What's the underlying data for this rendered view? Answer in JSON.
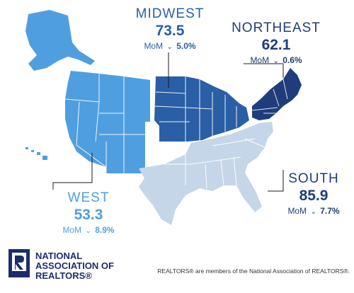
{
  "regions": {
    "midwest": {
      "name": "MIDWEST",
      "value": "73.5",
      "mom_label": "MoM",
      "mom_change": "5.0%",
      "color": "#2a5fa5"
    },
    "northeast": {
      "name": "NORTHEAST",
      "value": "62.1",
      "mom_label": "MoM",
      "mom_change": "0.6%",
      "color": "#1f3d7a"
    },
    "south": {
      "name": "SOUTH",
      "value": "85.9",
      "mom_label": "MoM",
      "mom_change": "7.7%",
      "color": "#c5d6e8"
    },
    "west": {
      "name": "WEST",
      "value": "53.3",
      "mom_label": "MoM",
      "mom_change": "8.9%",
      "color": "#4f9fe0"
    }
  },
  "colors": {
    "west_text": "#4f9fe0",
    "midwest_text": "#2a5fa5",
    "northeast_text": "#1f3d7a",
    "south_text": "#1f3d7a"
  },
  "footer": {
    "org_line1": "NATIONAL",
    "org_line2": "ASSOCIATION OF",
    "org_line3": "REALTORS®",
    "disclaimer": "REALTORS® are members of the National Association of REALTORS®."
  }
}
